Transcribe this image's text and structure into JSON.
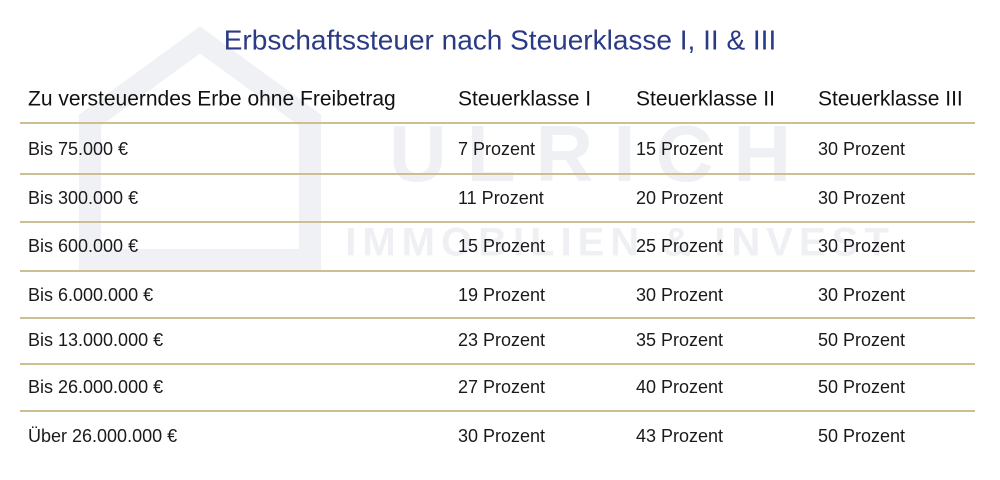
{
  "title": "Erbschaftssteuer nach Steuerklasse I, II & III",
  "watermark": {
    "name": "ULRICH",
    "tagline": "IMMOBILIEN & INVEST"
  },
  "table": {
    "header": [
      "Zu versteuerndes Erbe ohne Freibetrag",
      "Steuerklasse I",
      "Steuerklasse II",
      "Steuerklasse III"
    ],
    "rows": [
      [
        "Bis 75.000 €",
        "7 Prozent",
        "15 Prozent",
        "30 Prozent"
      ],
      [
        "Bis 300.000 €",
        "11 Prozent",
        "20 Prozent",
        "30 Prozent"
      ],
      [
        "Bis 600.000 €",
        "15 Prozent",
        "25 Prozent",
        "30 Prozent"
      ],
      [
        "Bis 6.000.000 €",
        "19 Prozent",
        "30 Prozent",
        "30 Prozent"
      ],
      [
        "Bis 13.000.000 €",
        "23 Prozent",
        "35 Prozent",
        "50 Prozent"
      ],
      [
        "Bis 26.000.000 €",
        "27 Prozent",
        "40 Prozent",
        "50 Prozent"
      ],
      [
        "Über 26.000.000 €",
        "30 Prozent",
        "43 Prozent",
        "50 Prozent"
      ]
    ]
  }
}
